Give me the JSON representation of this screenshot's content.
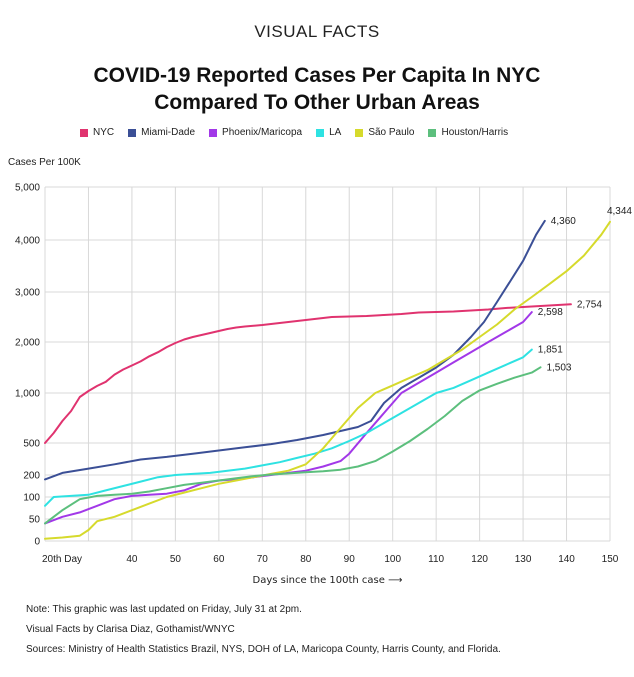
{
  "header": {
    "brand": "VISUAL FACTS",
    "title_line1": "COVID-19 Reported Cases Per Capita In NYC",
    "title_line2": "Compared To Other Urban Areas"
  },
  "footer": {
    "note": "Note: This graphic was last updated on Friday, July 31 at 2pm.",
    "credit": "Visual Facts by Clarisa Diaz, Gothamist/WNYC",
    "sources": "Sources: Ministry of Health Statistics Brazil, NYS, DOH of LA, Maricopa County, Harris County, and Florida."
  },
  "chart_data": {
    "type": "line",
    "ylabel": "Cases Per 100K",
    "xlabel": "Days since the 100th case ⟶",
    "x_range": [
      20,
      150
    ],
    "x_ticks": [
      {
        "value": 20,
        "label": "20th Day"
      },
      {
        "value": 40,
        "label": "40"
      },
      {
        "value": 50,
        "label": "50"
      },
      {
        "value": 60,
        "label": "60"
      },
      {
        "value": 70,
        "label": "70"
      },
      {
        "value": 80,
        "label": "80"
      },
      {
        "value": 90,
        "label": "90"
      },
      {
        "value": 100,
        "label": "100"
      },
      {
        "value": 110,
        "label": "110"
      },
      {
        "value": 120,
        "label": "120"
      },
      {
        "value": 130,
        "label": "130"
      },
      {
        "value": 140,
        "label": "140"
      },
      {
        "value": 150,
        "label": "150"
      }
    ],
    "y_ticks": [
      {
        "value": 0,
        "label": "0"
      },
      {
        "value": 50,
        "label": "50"
      },
      {
        "value": 100,
        "label": "100"
      },
      {
        "value": 200,
        "label": "200"
      },
      {
        "value": 500,
        "label": "500"
      },
      {
        "value": 1000,
        "label": "1,000"
      },
      {
        "value": 2000,
        "label": "2,000"
      },
      {
        "value": 3000,
        "label": "3,000"
      },
      {
        "value": 4000,
        "label": "4,000"
      },
      {
        "value": 5000,
        "label": "5,000"
      }
    ],
    "grid": true,
    "legend_position": "top",
    "series": [
      {
        "name": "NYC",
        "color": "#e0336f",
        "end_label": "2,754",
        "points": [
          [
            20,
            500
          ],
          [
            22,
            600
          ],
          [
            24,
            720
          ],
          [
            26,
            820
          ],
          [
            28,
            960
          ],
          [
            30,
            1040
          ],
          [
            32,
            1140
          ],
          [
            34,
            1220
          ],
          [
            36,
            1360
          ],
          [
            38,
            1460
          ],
          [
            40,
            1540
          ],
          [
            42,
            1620
          ],
          [
            44,
            1720
          ],
          [
            46,
            1800
          ],
          [
            48,
            1900
          ],
          [
            50,
            1980
          ],
          [
            52,
            2050
          ],
          [
            54,
            2100
          ],
          [
            56,
            2140
          ],
          [
            58,
            2180
          ],
          [
            60,
            2220
          ],
          [
            62,
            2260
          ],
          [
            64,
            2290
          ],
          [
            66,
            2310
          ],
          [
            70,
            2340
          ],
          [
            74,
            2380
          ],
          [
            78,
            2420
          ],
          [
            82,
            2460
          ],
          [
            86,
            2500
          ],
          [
            90,
            2510
          ],
          [
            94,
            2520
          ],
          [
            98,
            2540
          ],
          [
            102,
            2560
          ],
          [
            106,
            2590
          ],
          [
            110,
            2600
          ],
          [
            114,
            2610
          ],
          [
            118,
            2630
          ],
          [
            122,
            2650
          ],
          [
            126,
            2680
          ],
          [
            130,
            2700
          ],
          [
            134,
            2720
          ],
          [
            138,
            2740
          ],
          [
            141,
            2754
          ]
        ]
      },
      {
        "name": "Miami-Dade",
        "color": "#3b4f96",
        "end_label": "4,360",
        "points": [
          [
            20,
            180
          ],
          [
            24,
            220
          ],
          [
            30,
            260
          ],
          [
            36,
            300
          ],
          [
            42,
            345
          ],
          [
            48,
            370
          ],
          [
            54,
            400
          ],
          [
            60,
            430
          ],
          [
            66,
            460
          ],
          [
            72,
            490
          ],
          [
            78,
            530
          ],
          [
            84,
            580
          ],
          [
            88,
            620
          ],
          [
            92,
            660
          ],
          [
            95,
            720
          ],
          [
            98,
            900
          ],
          [
            102,
            1100
          ],
          [
            106,
            1300
          ],
          [
            110,
            1500
          ],
          [
            114,
            1750
          ],
          [
            118,
            2100
          ],
          [
            121,
            2400
          ],
          [
            124,
            2800
          ],
          [
            127,
            3200
          ],
          [
            130,
            3600
          ],
          [
            133,
            4100
          ],
          [
            135,
            4360
          ]
        ]
      },
      {
        "name": "Phoenix/Maricopa",
        "color": "#a238e8",
        "end_label": "2,598",
        "points": [
          [
            20,
            40
          ],
          [
            24,
            55
          ],
          [
            28,
            65
          ],
          [
            32,
            80
          ],
          [
            36,
            95
          ],
          [
            40,
            105
          ],
          [
            44,
            110
          ],
          [
            48,
            115
          ],
          [
            52,
            130
          ],
          [
            56,
            160
          ],
          [
            60,
            175
          ],
          [
            64,
            180
          ],
          [
            68,
            190
          ],
          [
            72,
            200
          ],
          [
            76,
            220
          ],
          [
            80,
            240
          ],
          [
            84,
            280
          ],
          [
            88,
            330
          ],
          [
            90,
            400
          ],
          [
            94,
            600
          ],
          [
            98,
            800
          ],
          [
            102,
            1000
          ],
          [
            106,
            1200
          ],
          [
            110,
            1400
          ],
          [
            114,
            1600
          ],
          [
            118,
            1800
          ],
          [
            122,
            2000
          ],
          [
            126,
            2200
          ],
          [
            130,
            2400
          ],
          [
            132,
            2598
          ]
        ]
      },
      {
        "name": "LA",
        "color": "#2ee2e2",
        "end_label": "1,851",
        "points": [
          [
            20,
            80
          ],
          [
            22,
            100
          ],
          [
            26,
            105
          ],
          [
            30,
            110
          ],
          [
            34,
            130
          ],
          [
            38,
            150
          ],
          [
            42,
            170
          ],
          [
            46,
            190
          ],
          [
            50,
            200
          ],
          [
            54,
            210
          ],
          [
            58,
            220
          ],
          [
            62,
            240
          ],
          [
            66,
            260
          ],
          [
            70,
            290
          ],
          [
            74,
            320
          ],
          [
            78,
            360
          ],
          [
            82,
            400
          ],
          [
            86,
            450
          ],
          [
            90,
            520
          ],
          [
            94,
            600
          ],
          [
            98,
            700
          ],
          [
            102,
            800
          ],
          [
            106,
            900
          ],
          [
            110,
            1000
          ],
          [
            114,
            1100
          ],
          [
            118,
            1250
          ],
          [
            122,
            1400
          ],
          [
            126,
            1550
          ],
          [
            130,
            1700
          ],
          [
            132,
            1851
          ]
        ]
      },
      {
        "name": "São Paulo",
        "color": "#d6da2c",
        "end_label": "4,344",
        "points": [
          [
            20,
            5
          ],
          [
            24,
            8
          ],
          [
            28,
            12
          ],
          [
            30,
            25
          ],
          [
            32,
            45
          ],
          [
            36,
            55
          ],
          [
            40,
            70
          ],
          [
            44,
            85
          ],
          [
            48,
            100
          ],
          [
            52,
            120
          ],
          [
            56,
            140
          ],
          [
            60,
            160
          ],
          [
            64,
            175
          ],
          [
            68,
            190
          ],
          [
            72,
            210
          ],
          [
            76,
            240
          ],
          [
            80,
            300
          ],
          [
            84,
            450
          ],
          [
            88,
            650
          ],
          [
            92,
            850
          ],
          [
            96,
            1000
          ],
          [
            100,
            1150
          ],
          [
            104,
            1300
          ],
          [
            108,
            1450
          ],
          [
            112,
            1650
          ],
          [
            116,
            1850
          ],
          [
            120,
            2100
          ],
          [
            124,
            2350
          ],
          [
            128,
            2650
          ],
          [
            132,
            2900
          ],
          [
            136,
            3150
          ],
          [
            140,
            3400
          ],
          [
            144,
            3700
          ],
          [
            148,
            4100
          ],
          [
            150,
            4344
          ]
        ]
      },
      {
        "name": "Houston/Harris",
        "color": "#5cbf7d",
        "end_label": "1,503",
        "points": [
          [
            20,
            40
          ],
          [
            24,
            70
          ],
          [
            28,
            95
          ],
          [
            32,
            105
          ],
          [
            36,
            110
          ],
          [
            40,
            115
          ],
          [
            44,
            125
          ],
          [
            48,
            140
          ],
          [
            52,
            155
          ],
          [
            56,
            165
          ],
          [
            60,
            175
          ],
          [
            64,
            185
          ],
          [
            68,
            195
          ],
          [
            72,
            205
          ],
          [
            76,
            215
          ],
          [
            80,
            225
          ],
          [
            84,
            235
          ],
          [
            88,
            250
          ],
          [
            92,
            280
          ],
          [
            96,
            330
          ],
          [
            100,
            420
          ],
          [
            104,
            520
          ],
          [
            108,
            640
          ],
          [
            112,
            770
          ],
          [
            116,
            920
          ],
          [
            120,
            1050
          ],
          [
            124,
            1180
          ],
          [
            128,
            1300
          ],
          [
            132,
            1400
          ],
          [
            134,
            1503
          ]
        ]
      }
    ]
  }
}
